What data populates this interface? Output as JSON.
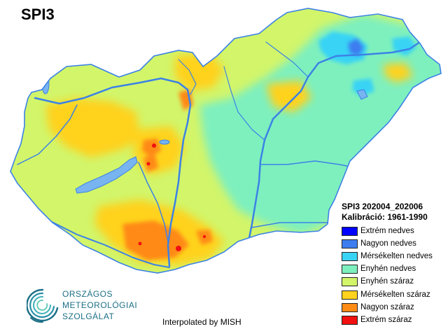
{
  "map": {
    "title": "SPI3",
    "legend": {
      "period": "SPI3 202004_202006",
      "calibration": "Kalibráció: 1961-1990",
      "classes": [
        {
          "label": "Extrém nedves",
          "color": "#0000ff"
        },
        {
          "label": "Nagyon nedves",
          "color": "#3d7df0"
        },
        {
          "label": "Mérsékelten nedves",
          "color": "#39d3f5"
        },
        {
          "label": "Enyhén nedves",
          "color": "#7ef0be"
        },
        {
          "label": "Enyhén száraz",
          "color": "#d2f56a"
        },
        {
          "label": "Mérsékelten száraz",
          "color": "#ffd21e"
        },
        {
          "label": "Nagyon száraz",
          "color": "#ff8a14"
        },
        {
          "label": "Extrém száraz",
          "color": "#f01010"
        }
      ]
    },
    "credit": "Interpolated by MISH",
    "lake_color": "#78b4f0",
    "river_color": "#3c82e6"
  },
  "logo": {
    "lines": [
      "ORSZÁGOS",
      "METEOROLÓGIAI",
      "SZOLGÁLAT"
    ],
    "color": "#1c6f86"
  }
}
